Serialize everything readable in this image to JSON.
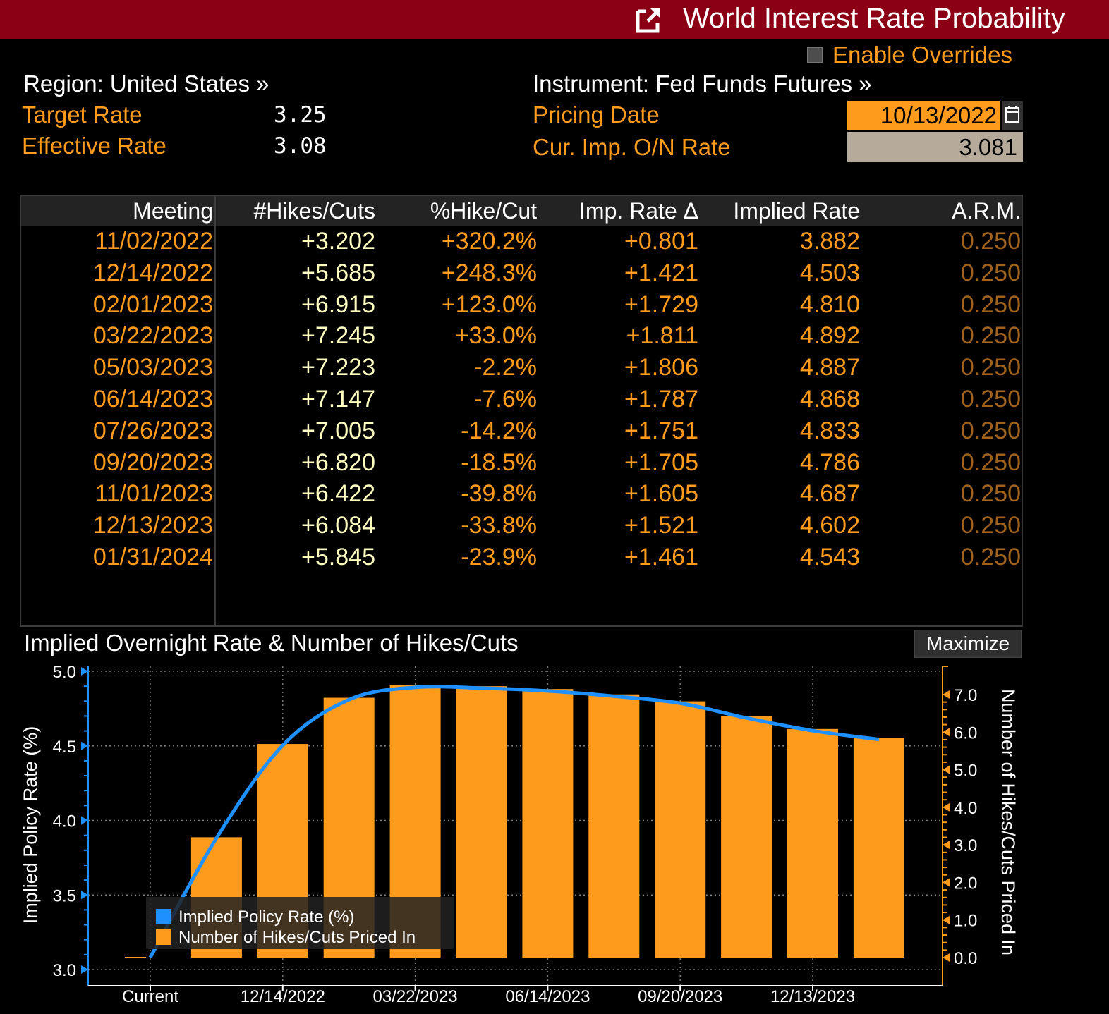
{
  "header": {
    "title": "World Interest Rate Probability",
    "colors": {
      "bar": "#8b0014",
      "accent": "#fe9b1d"
    },
    "icon": "launch-icon"
  },
  "overrides": {
    "label": "Enable Overrides",
    "checked": false
  },
  "left_info": {
    "region": "Region: United States »",
    "target_label": "Target Rate",
    "target_value": "3.25",
    "effective_label": "Effective Rate",
    "effective_value": "3.08"
  },
  "right_info": {
    "instrument": "Instrument: Fed Funds Futures »",
    "pricing_label": "Pricing Date",
    "pricing_value": "10/13/2022",
    "rate_label": "Cur. Imp. O/N Rate",
    "rate_value": "3.081"
  },
  "table": {
    "headers": [
      "Meeting",
      "#Hikes/Cuts",
      "%Hike/Cut",
      "Imp. Rate Δ",
      "Implied Rate",
      "A.R.M."
    ],
    "rows": [
      [
        "11/02/2022",
        "+3.202",
        "+320.2%",
        "+0.801",
        "3.882",
        "0.250"
      ],
      [
        "12/14/2022",
        "+5.685",
        "+248.3%",
        "+1.421",
        "4.503",
        "0.250"
      ],
      [
        "02/01/2023",
        "+6.915",
        "+123.0%",
        "+1.729",
        "4.810",
        "0.250"
      ],
      [
        "03/22/2023",
        "+7.245",
        "+33.0%",
        "+1.811",
        "4.892",
        "0.250"
      ],
      [
        "05/03/2023",
        "+7.223",
        "-2.2%",
        "+1.806",
        "4.887",
        "0.250"
      ],
      [
        "06/14/2023",
        "+7.147",
        "-7.6%",
        "+1.787",
        "4.868",
        "0.250"
      ],
      [
        "07/26/2023",
        "+7.005",
        "-14.2%",
        "+1.751",
        "4.833",
        "0.250"
      ],
      [
        "09/20/2023",
        "+6.820",
        "-18.5%",
        "+1.705",
        "4.786",
        "0.250"
      ],
      [
        "11/01/2023",
        "+6.422",
        "-39.8%",
        "+1.605",
        "4.687",
        "0.250"
      ],
      [
        "12/13/2023",
        "+6.084",
        "-33.8%",
        "+1.521",
        "4.602",
        "0.250"
      ],
      [
        "01/31/2024",
        "+5.845",
        "-23.9%",
        "+1.461",
        "4.543",
        "0.250"
      ]
    ]
  },
  "chart_section": {
    "title": "Implied Overnight Rate & Number of Hikes/Cuts",
    "maximize_label": "Maximize"
  },
  "chart_data": {
    "type": "bar",
    "categories": [
      "Current",
      "11/02/2022",
      "12/14/2022",
      "02/01/2023",
      "03/22/2023",
      "05/03/2023",
      "06/14/2023",
      "07/26/2023",
      "09/20/2023",
      "11/01/2023",
      "12/13/2023",
      "01/31/2024"
    ],
    "x_tick_labels": [
      "Current",
      "12/14/2022",
      "03/22/2023",
      "06/14/2023",
      "09/20/2023",
      "12/13/2023"
    ],
    "series": [
      {
        "name": "Number of Hikes/Cuts Priced In",
        "type": "bar",
        "axis": "right",
        "color": "#fe9b1d",
        "values": [
          0,
          3.202,
          5.685,
          6.915,
          7.245,
          7.223,
          7.147,
          7.005,
          6.82,
          6.422,
          6.084,
          5.845
        ]
      },
      {
        "name": "Implied Policy Rate (%)",
        "type": "line",
        "axis": "left",
        "color": "#1e90ff",
        "values": [
          3.081,
          3.882,
          4.503,
          4.81,
          4.892,
          4.887,
          4.868,
          4.833,
          4.786,
          4.687,
          4.602,
          4.543
        ]
      }
    ],
    "ylabel_left": "Implied Policy Rate (%)",
    "ylabel_right": "Number of Hikes/Cuts Priced In",
    "ylim_left": [
      3.0,
      5.0
    ],
    "ylim_right": [
      -0.1,
      7.6
    ],
    "yticks_left": [
      "3.0",
      "3.5",
      "4.0",
      "4.5",
      "5.0"
    ],
    "yticks_right": [
      "0.0",
      "1.0",
      "2.0",
      "3.0",
      "4.0",
      "5.0",
      "6.0",
      "7.0"
    ],
    "grid": true,
    "legend_position": "bottom-left"
  }
}
